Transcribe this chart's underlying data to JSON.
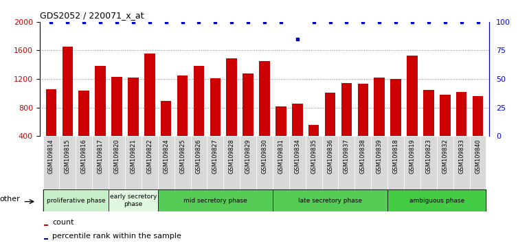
{
  "title": "GDS2052 / 220071_x_at",
  "samples": [
    "GSM109814",
    "GSM109815",
    "GSM109816",
    "GSM109817",
    "GSM109820",
    "GSM109821",
    "GSM109822",
    "GSM109824",
    "GSM109825",
    "GSM109826",
    "GSM109827",
    "GSM109828",
    "GSM109829",
    "GSM109830",
    "GSM109831",
    "GSM109834",
    "GSM109835",
    "GSM109836",
    "GSM109837",
    "GSM109838",
    "GSM109839",
    "GSM109818",
    "GSM109819",
    "GSM109823",
    "GSM109832",
    "GSM109833",
    "GSM109840"
  ],
  "counts": [
    1060,
    1650,
    1040,
    1380,
    1230,
    1220,
    1560,
    890,
    1250,
    1380,
    1210,
    1490,
    1280,
    1450,
    820,
    850,
    560,
    1010,
    1140,
    1130,
    1220,
    1200,
    1530,
    1050,
    980,
    1020,
    960
  ],
  "percentile": [
    100,
    100,
    100,
    100,
    100,
    100,
    100,
    100,
    100,
    100,
    100,
    100,
    100,
    100,
    100,
    85,
    100,
    100,
    100,
    100,
    100,
    100,
    100,
    100,
    100,
    100,
    100
  ],
  "phases": [
    {
      "label": "proliferative phase",
      "start": 0,
      "end": 4,
      "color": "#c8f0c8"
    },
    {
      "label": "early secretory\nphase",
      "start": 4,
      "end": 7,
      "color": "#e8fae8"
    },
    {
      "label": "mid secretory phase",
      "start": 7,
      "end": 14,
      "color": "#66dd66"
    },
    {
      "label": "late secretory phase",
      "start": 14,
      "end": 21,
      "color": "#66dd66"
    },
    {
      "label": "ambiguous phase",
      "start": 21,
      "end": 27,
      "color": "#44cc44"
    }
  ],
  "bar_color": "#cc0000",
  "dot_color": "#0000cc",
  "ylim_left": [
    400,
    2000
  ],
  "ylim_right": [
    0,
    100
  ],
  "yticks_left": [
    400,
    800,
    1200,
    1600,
    2000
  ],
  "yticks_right": [
    0,
    25,
    50,
    75,
    100
  ],
  "background_color": "#ffffff",
  "grid_color": "#888888",
  "tick_label_bg": "#d8d8d8"
}
